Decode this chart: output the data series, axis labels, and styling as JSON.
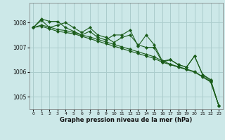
{
  "background_color": "#cce8e8",
  "grid_color": "#aacccc",
  "line_color": "#1a5c1a",
  "xlabel": "Graphe pression niveau de la mer (hPa)",
  "ylim": [
    1004.5,
    1008.8
  ],
  "xlim": [
    -0.5,
    23.5
  ],
  "yticks": [
    1005,
    1006,
    1007,
    1008
  ],
  "xticks": [
    0,
    1,
    2,
    3,
    4,
    5,
    6,
    7,
    8,
    9,
    10,
    11,
    12,
    13,
    14,
    15,
    16,
    17,
    18,
    19,
    20,
    21,
    22,
    23
  ],
  "series": [
    [
      1007.8,
      1008.1,
      1007.8,
      1007.9,
      1008.0,
      1007.8,
      1007.6,
      1007.8,
      1007.5,
      1007.4,
      1007.2,
      1007.4,
      1007.5,
      1007.1,
      1007.0,
      1007.0,
      1006.4,
      1006.5,
      1006.3,
      1006.2,
      1006.65,
      1005.9,
      1005.7,
      1004.65
    ],
    [
      1007.8,
      1008.15,
      1008.05,
      1008.05,
      1007.8,
      1007.65,
      1007.5,
      1007.65,
      1007.4,
      1007.3,
      1007.5,
      1007.5,
      1007.7,
      1007.05,
      1007.5,
      1007.1,
      1006.45,
      1006.5,
      1006.3,
      1006.2,
      1006.65,
      1005.9,
      1005.65,
      1004.65
    ],
    [
      1007.8,
      1007.85,
      1007.75,
      1007.65,
      1007.6,
      1007.55,
      1007.45,
      1007.35,
      1007.25,
      1007.15,
      1007.05,
      1006.95,
      1006.85,
      1006.75,
      1006.65,
      1006.55,
      1006.4,
      1006.3,
      1006.2,
      1006.1,
      1006.0,
      1005.8,
      1005.6,
      1004.65
    ],
    [
      1007.8,
      1007.9,
      1007.82,
      1007.72,
      1007.68,
      1007.6,
      1007.5,
      1007.42,
      1007.32,
      1007.22,
      1007.12,
      1007.02,
      1006.92,
      1006.82,
      1006.72,
      1006.62,
      1006.45,
      1006.32,
      1006.22,
      1006.12,
      1006.02,
      1005.82,
      1005.62,
      1004.65
    ]
  ]
}
